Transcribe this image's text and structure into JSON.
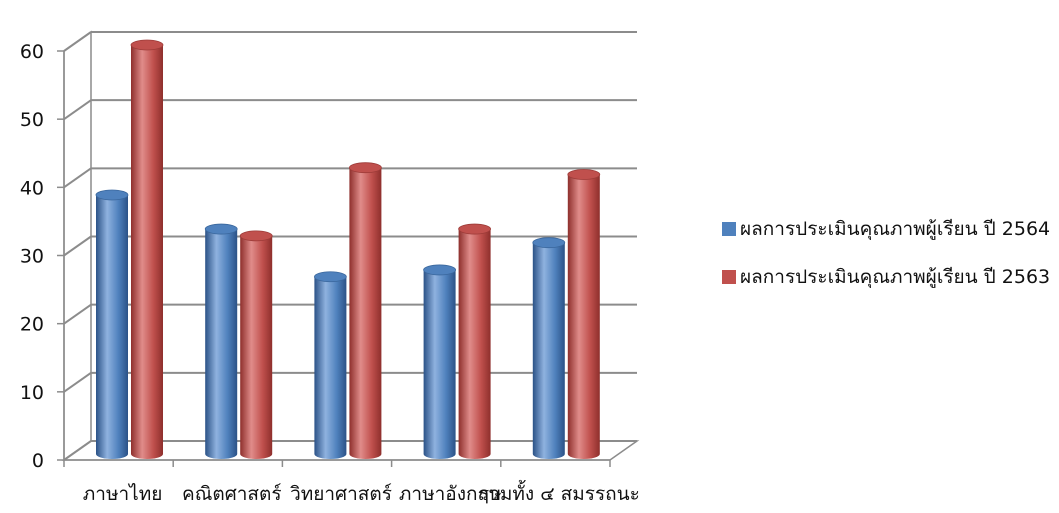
{
  "chart_data": {
    "type": "bar",
    "categories": [
      "ภาษาไทย",
      "คณิตศาสตร์",
      "วิทยาศาสตร์",
      "ภาษาอังกฤษ",
      "รวมทั้ง ๔ สมรรถนะ"
    ],
    "series": [
      {
        "name": "ผลการประเมินคุณภาพผู้เรียน ปี 2564",
        "values": [
          38,
          33,
          26,
          27,
          31
        ],
        "color": "#4f81bd"
      },
      {
        "name": "ผลการประเมินคุณภาพผู้เรียน ปี 2563",
        "values": [
          60,
          32,
          42,
          33,
          41
        ],
        "color": "#c0504d"
      }
    ],
    "y_ticks": [
      "0",
      "10",
      "20",
      "30",
      "40",
      "50",
      "60"
    ],
    "ylim": [
      0,
      60
    ],
    "grid": true,
    "legend_position": "right",
    "style": "3d-cylinder"
  }
}
